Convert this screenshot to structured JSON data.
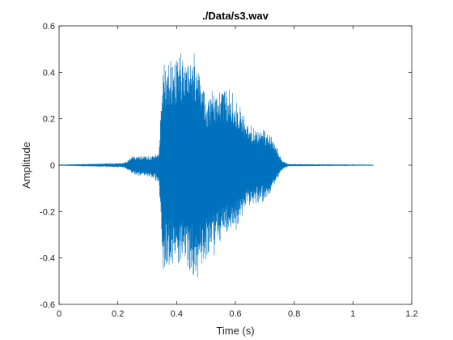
{
  "chart_data": {
    "type": "line",
    "title": "./Data/s3.wav",
    "xlabel": "Time (s)",
    "ylabel": "Amplitude",
    "xlim": [
      0,
      1.2
    ],
    "ylim": [
      -0.6,
      0.6
    ],
    "xticks": [
      0,
      0.2,
      0.4,
      0.6,
      0.8,
      1,
      1.2
    ],
    "xtick_labels": [
      "0",
      "0.2",
      "0.4",
      "0.6",
      "0.8",
      "1",
      "1.2"
    ],
    "yticks": [
      -0.6,
      -0.4,
      -0.2,
      0,
      0.2,
      0.4,
      0.6
    ],
    "ytick_labels": [
      "-0.6",
      "-0.4",
      "-0.2",
      "0",
      "0.2",
      "0.4",
      "0.6"
    ],
    "grid": false,
    "line_color": "#0072BD",
    "series": [
      {
        "x": [
          0,
          0.22,
          0.25,
          0.28,
          0.31,
          0.34,
          0.355,
          0.37,
          0.4,
          0.43,
          0.44,
          0.47,
          0.5,
          0.53,
          0.56,
          0.59,
          0.6,
          0.63,
          0.66,
          0.7,
          0.73,
          0.76,
          0.78,
          1.07
        ],
        "upper": [
          0.002,
          0.01,
          0.04,
          0.04,
          0.04,
          0.06,
          0.5,
          0.45,
          0.48,
          0.5,
          0.55,
          0.45,
          0.3,
          0.34,
          0.35,
          0.32,
          0.32,
          0.22,
          0.16,
          0.16,
          0.12,
          0.02,
          0.005,
          0.002
        ],
        "lower": [
          -0.002,
          -0.01,
          -0.04,
          -0.05,
          -0.05,
          -0.08,
          -0.5,
          -0.45,
          -0.48,
          -0.45,
          -0.48,
          -0.5,
          -0.42,
          -0.4,
          -0.3,
          -0.34,
          -0.3,
          -0.2,
          -0.18,
          -0.16,
          -0.1,
          -0.02,
          -0.005,
          -0.002
        ]
      }
    ]
  }
}
